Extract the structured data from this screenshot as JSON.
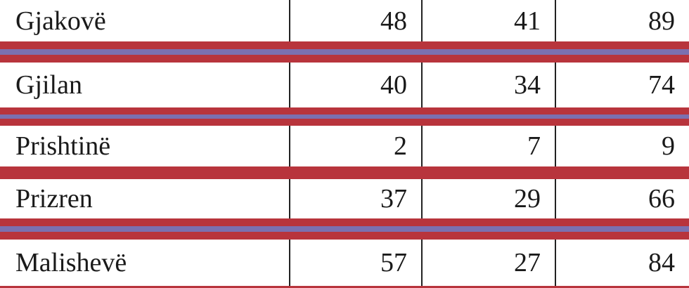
{
  "table": {
    "rows": [
      {
        "name": "Gjakovë",
        "values": [
          "48",
          "41",
          "89"
        ]
      },
      {
        "name": "Gjilan",
        "values": [
          "40",
          "34",
          "74"
        ]
      },
      {
        "name": "Prishtinë",
        "values": [
          "2",
          "7",
          "9"
        ]
      },
      {
        "name": "Prizren",
        "values": [
          "37",
          "29",
          "66"
        ]
      },
      {
        "name": "Malishevë",
        "values": [
          "57",
          "27",
          "84"
        ]
      }
    ]
  },
  "colors": {
    "border": "#b8343c",
    "stripe": "#7b70b0",
    "cell_bg": "#ffffff"
  }
}
